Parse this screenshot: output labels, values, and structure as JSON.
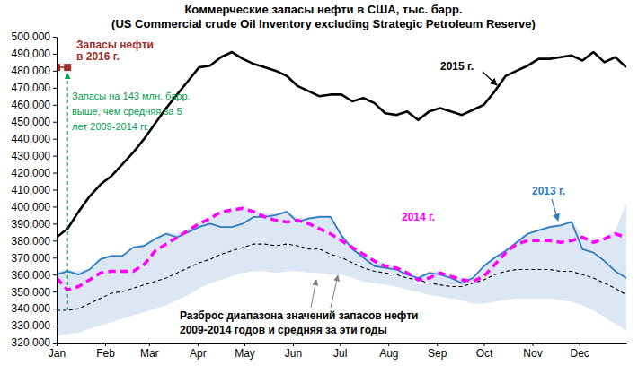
{
  "chart_data": {
    "type": "line",
    "title": "Коммерческие запасы нефти в США, тыс. барр.",
    "subtitle": "(US Commercial crude Oil Inventory excluding Strategic Petroleum Reserve)",
    "x": [
      0,
      1,
      2,
      3,
      4,
      5,
      6,
      7,
      8,
      9,
      10,
      11,
      12,
      13,
      14,
      15,
      16,
      17,
      18,
      19,
      20,
      21,
      22,
      23,
      24,
      25,
      26,
      27,
      28,
      29,
      30,
      31,
      32,
      33,
      34,
      35,
      36,
      37,
      38,
      39,
      40,
      41,
      42,
      43,
      44,
      45,
      46,
      47,
      48,
      49,
      50,
      51,
      52
    ],
    "xlim": [
      0,
      52
    ],
    "xticks": [
      {
        "value": 0,
        "label": "Jan"
      },
      {
        "value": 4.43,
        "label": "Feb"
      },
      {
        "value": 8.43,
        "label": "Mar"
      },
      {
        "value": 12.86,
        "label": "Apr"
      },
      {
        "value": 17.14,
        "label": "May"
      },
      {
        "value": 21.57,
        "label": "Jun"
      },
      {
        "value": 25.86,
        "label": "Jul"
      },
      {
        "value": 30.29,
        "label": "Aug"
      },
      {
        "value": 34.71,
        "label": "Sep"
      },
      {
        "value": 39,
        "label": "Oct"
      },
      {
        "value": 43.43,
        "label": "Nov"
      },
      {
        "value": 47.71,
        "label": "Dec"
      }
    ],
    "ylim": [
      320000,
      500000
    ],
    "yticks": [
      {
        "value": 320000,
        "label": "320,000"
      },
      {
        "value": 330000,
        "label": "330,000"
      },
      {
        "value": 340000,
        "label": "340,000"
      },
      {
        "value": 350000,
        "label": "350,000"
      },
      {
        "value": 360000,
        "label": "360,000"
      },
      {
        "value": 370000,
        "label": "370,000"
      },
      {
        "value": 380000,
        "label": "380,000"
      },
      {
        "value": 390000,
        "label": "390,000"
      },
      {
        "value": 400000,
        "label": "400,000"
      },
      {
        "value": 410000,
        "label": "410,000"
      },
      {
        "value": 420000,
        "label": "420,000"
      },
      {
        "value": 430000,
        "label": "430,000"
      },
      {
        "value": 440000,
        "label": "440,000"
      },
      {
        "value": 450000,
        "label": "450,000"
      },
      {
        "value": 460000,
        "label": "460,000"
      },
      {
        "value": 470000,
        "label": "470,000"
      },
      {
        "value": 480000,
        "label": "480,000"
      },
      {
        "value": 490000,
        "label": "490,000"
      },
      {
        "value": 500000,
        "label": "500,000"
      }
    ],
    "grid": false,
    "series": [
      {
        "name": "2015 г.",
        "color": "#000000",
        "line_style": "solid",
        "values": [
          382000,
          387000,
          397000,
          406000,
          413000,
          418000,
          425000,
          432000,
          440000,
          449000,
          458000,
          466000,
          474000,
          482000,
          483000,
          488000,
          491000,
          487000,
          484000,
          482000,
          480000,
          477000,
          471000,
          468000,
          465000,
          466000,
          466000,
          462000,
          464000,
          461000,
          455000,
          454000,
          456000,
          451000,
          456000,
          458000,
          456000,
          454000,
          457000,
          460000,
          468000,
          477000,
          480000,
          483000,
          487000,
          487000,
          488000,
          489000,
          486000,
          491000,
          485000,
          488000,
          482000
        ]
      },
      {
        "name": "2014 г.",
        "color": "#ff00ff",
        "line_style": "dashed",
        "values": [
          358000,
          351000,
          353000,
          357000,
          361000,
          362000,
          362000,
          362000,
          366000,
          374000,
          378000,
          382000,
          386000,
          390000,
          393000,
          397000,
          398000,
          399000,
          397000,
          394000,
          392000,
          391000,
          392000,
          390000,
          387000,
          384000,
          380000,
          376000,
          372000,
          368000,
          365000,
          364000,
          361000,
          357000,
          358000,
          361000,
          359000,
          357000,
          356000,
          359000,
          366000,
          373000,
          378000,
          380000,
          380000,
          380000,
          379000,
          380000,
          382000,
          379000,
          381000,
          384000,
          382000
        ]
      },
      {
        "name": "2013 г.",
        "color": "#2e7dc0",
        "line_style": "solid",
        "values": [
          360000,
          362000,
          360000,
          363000,
          369000,
          371000,
          371000,
          376000,
          377000,
          381000,
          384000,
          382000,
          385000,
          388000,
          390000,
          388000,
          388000,
          390000,
          394000,
          394000,
          395000,
          397000,
          391000,
          393000,
          394000,
          394000,
          383000,
          375000,
          370000,
          365000,
          364000,
          363000,
          360000,
          358000,
          361000,
          360000,
          358000,
          355000,
          358000,
          365000,
          370000,
          374000,
          379000,
          384000,
          386000,
          388000,
          389000,
          391000,
          375000,
          373000,
          368000,
          362000,
          358000
        ]
      },
      {
        "color": "#000000",
        "line_style": "dashed",
        "values": [
          339000,
          339000,
          340000,
          343000,
          346000,
          349000,
          350000,
          352000,
          354000,
          356000,
          358000,
          361000,
          364000,
          367000,
          369000,
          372000,
          374000,
          376000,
          378000,
          378000,
          377000,
          378000,
          377000,
          375000,
          375000,
          372000,
          370000,
          367000,
          364000,
          362000,
          361000,
          360000,
          358000,
          357000,
          355000,
          354000,
          353000,
          353000,
          355000,
          357000,
          360000,
          362000,
          363000,
          363000,
          363000,
          363000,
          362000,
          362000,
          360000,
          358000,
          355000,
          352000,
          348000
        ]
      },
      {
        "name": "Запасы нефти в 2016 г.",
        "color": "#a0302e",
        "line_style": "solid",
        "marker": "square",
        "values": [
          482000,
          482000,
          null,
          null,
          null,
          null,
          null,
          null,
          null,
          null,
          null,
          null,
          null,
          null,
          null,
          null,
          null,
          null,
          null,
          null,
          null,
          null,
          null,
          null,
          null,
          null,
          null,
          null,
          null,
          null,
          null,
          null,
          null,
          null,
          null,
          null,
          null,
          null,
          null,
          null,
          null,
          null,
          null,
          null,
          null,
          null,
          null,
          null,
          null,
          null,
          null,
          null,
          null
        ]
      }
    ],
    "band": {
      "color": "#dde7f3",
      "lower": [
        324000,
        325000,
        326000,
        328000,
        330000,
        332000,
        334000,
        336000,
        338000,
        340000,
        342000,
        345000,
        348000,
        352000,
        355000,
        357000,
        359000,
        361000,
        362000,
        362000,
        361000,
        362000,
        362000,
        361000,
        361000,
        360000,
        360000,
        358000,
        356000,
        355000,
        354000,
        353000,
        351000,
        350000,
        348000,
        347000,
        346000,
        345000,
        343000,
        343000,
        344000,
        345000,
        346000,
        346000,
        346000,
        346000,
        345000,
        344000,
        342000,
        339000,
        335000,
        331000,
        327000
      ],
      "upper": [
        362000,
        363000,
        362000,
        364000,
        370000,
        372000,
        372000,
        377000,
        378000,
        382000,
        385000,
        384000,
        387000,
        391000,
        394000,
        398000,
        399000,
        400000,
        398000,
        396000,
        396000,
        398000,
        393000,
        394000,
        395000,
        395000,
        384000,
        377000,
        373000,
        369000,
        366000,
        365000,
        362000,
        359000,
        362000,
        362000,
        360000,
        358000,
        359000,
        366000,
        371000,
        375000,
        380000,
        385000,
        387000,
        389000,
        390000,
        392000,
        383000,
        380000,
        382000,
        386000,
        402000
      ]
    },
    "annotations": [
      "Запасы на 143 млн. барр. выше, чем средняя за 5 лет 2009-2014 гг.",
      "Разброс диапазона значений запасов нефти 2009-2014 годов и средняя за эти годы"
    ]
  }
}
